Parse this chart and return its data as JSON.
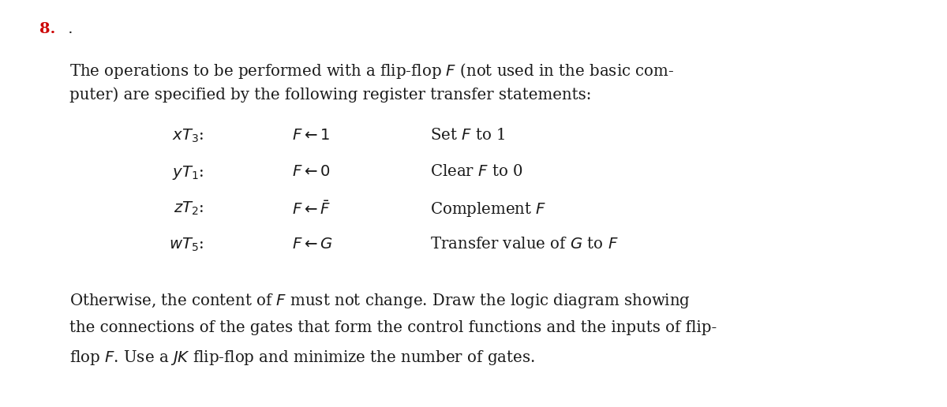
{
  "bg_color": "#ffffff",
  "fig_width": 12.0,
  "fig_height": 5.16,
  "dpi": 100,
  "problem_number": "8.",
  "problem_number_dot": " .",
  "problem_number_color": "#cc0000",
  "text_color": "#1a1a1a",
  "problem_number_fontsize": 14,
  "body_fontsize": 14.2,
  "table_fontsize": 14.2,
  "intro_line1": "The operations to be performed with a flip-flop $F$ (not used in the basic com-",
  "intro_line2": "puter) are specified by the following register transfer statements:",
  "table_rows": [
    {
      "col1": "$xT_3$:",
      "col2": "$F\\leftarrow 1$",
      "col3": "Set $F$ to 1"
    },
    {
      "col1": "$yT_1$:",
      "col2": "$F\\leftarrow 0$",
      "col3": "Clear $F$ to 0"
    },
    {
      "col1": "$zT_2$:",
      "col2": "$F\\leftarrow \\bar{F}$",
      "col3": "Complement $F$"
    },
    {
      "col1": "$wT_5$:",
      "col2": "$F\\leftarrow G$",
      "col3": "Transfer value of $G$ to $F$"
    }
  ],
  "closing_line1": "Otherwise, the content of $F$ must not change. Draw the logic diagram showing",
  "closing_line2": "the connections of the gates that form the control functions and the inputs of flip-",
  "closing_line3": "flop $F$. Use a $JK$ flip-flop and minimize the number of gates."
}
